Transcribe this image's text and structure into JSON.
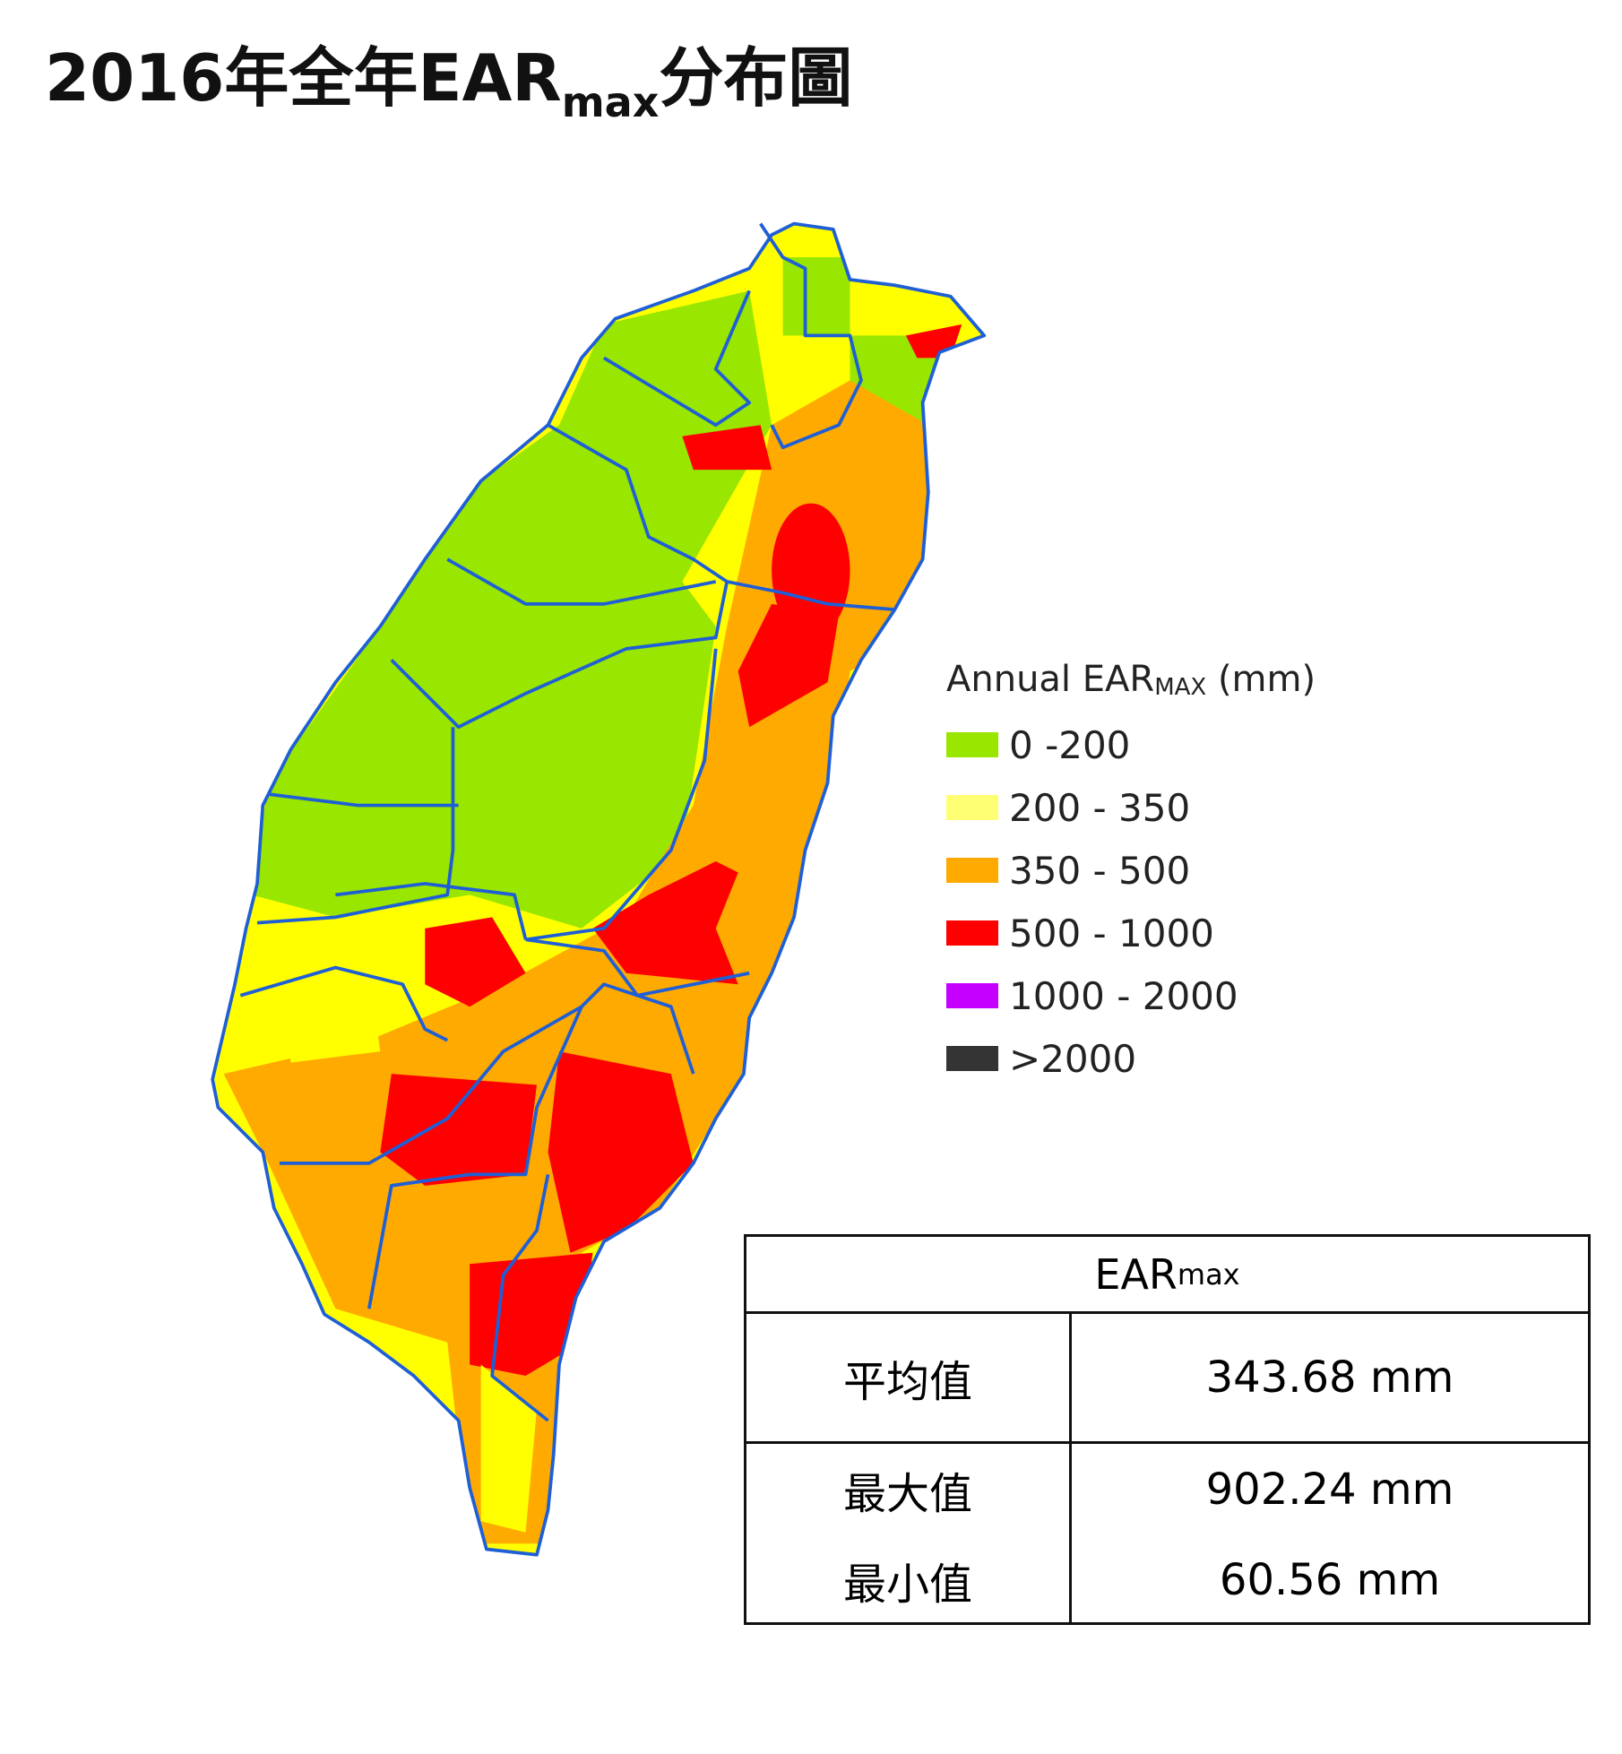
{
  "header": {
    "title": "2016年全年EAR",
    "title_sub": "max",
    "title_end": "分布圖"
  },
  "legend": {
    "title": "Annual EAR",
    "title_sub": "MAX",
    "title_end": "(mm)",
    "items": [
      {
        "label": "0 -200",
        "color": "#99e600"
      },
      {
        "label": "200 - 350",
        "color": "#ffff73"
      },
      {
        "label": "350 - 500",
        "color": "#ffaa00"
      },
      {
        "label": "500 - 1000",
        "color": "#ff0000"
      },
      {
        "label": "1000 - 2000",
        "color": "#c500ff"
      },
      {
        "label": ">2000",
        "color": "#343434"
      }
    ]
  },
  "table": {
    "header": "EAR",
    "header_sub": "max",
    "rows": [
      [
        [
          "平均值"
        ],
        [
          "343.68 mm"
        ]
      ],
      [
        [
          "最大值",
          "最小值"
        ],
        [
          "902.24 mm",
          "60.56 mm"
        ]
      ]
    ]
  }
}
